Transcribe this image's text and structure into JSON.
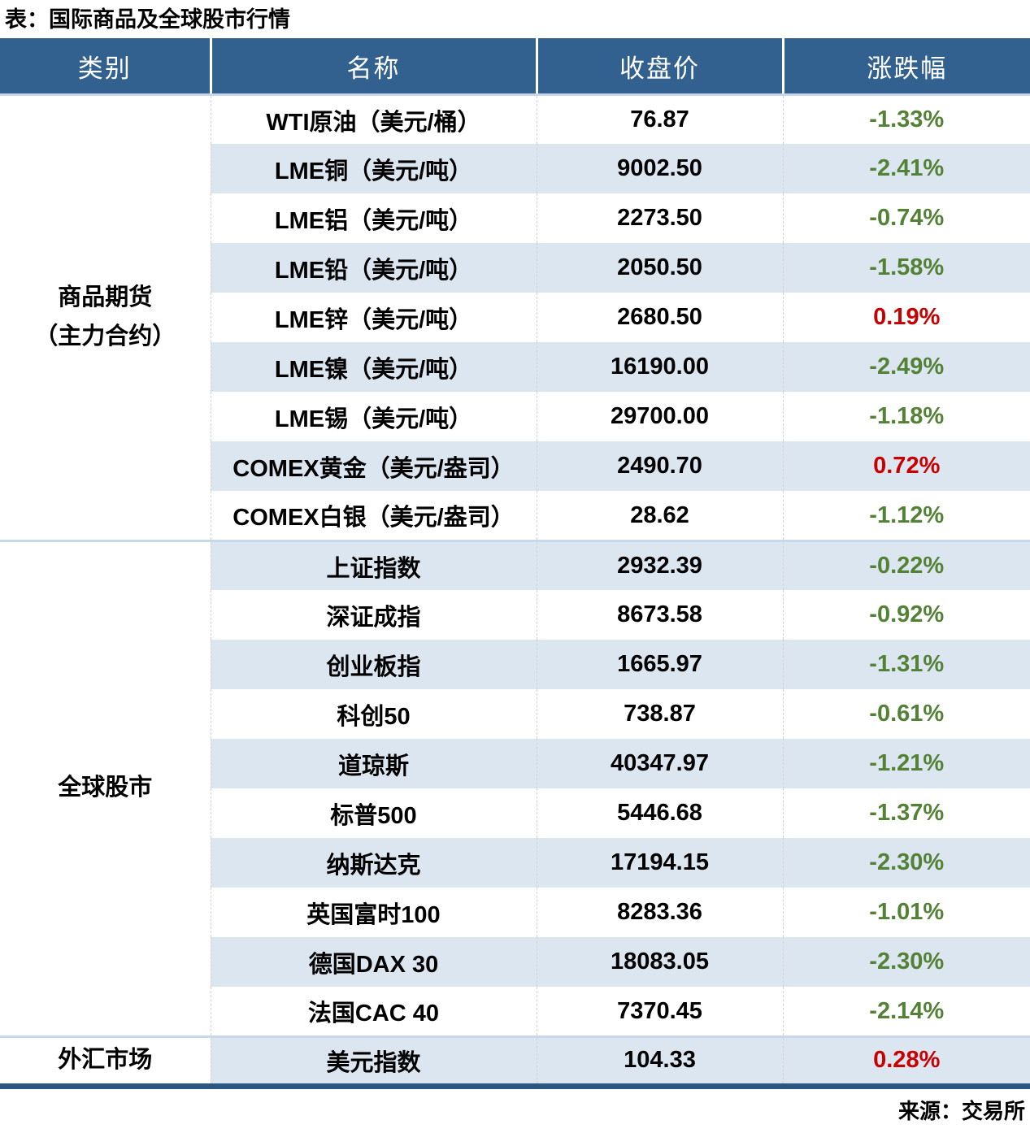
{
  "title": "表：国际商品及全球股市行情",
  "source": "来源：交易所",
  "colors": {
    "header_bg": "#33618F",
    "row_alt_bg": "#DCE6F1",
    "section_divider": "#C8D8EA",
    "bottom_bar": "#2C5784",
    "advance_red": "#C80000",
    "decline_green": "#538135",
    "text": "#000000"
  },
  "table": {
    "headers": {
      "category": "类别",
      "name": "名称",
      "close": "收盘价",
      "change": "涨跌幅"
    },
    "sections": [
      {
        "category": "商品期货\n（主力合约）",
        "rows": [
          {
            "name": "WTI原油（美元/桶）",
            "close": "76.87",
            "change": "-1.33%"
          },
          {
            "name": "LME铜（美元/吨）",
            "close": "9002.50",
            "change": "-2.41%"
          },
          {
            "name": "LME铝（美元/吨）",
            "close": "2273.50",
            "change": "-0.74%"
          },
          {
            "name": "LME铅（美元/吨）",
            "close": "2050.50",
            "change": "-1.58%"
          },
          {
            "name": "LME锌（美元/吨）",
            "close": "2680.50",
            "change": "0.19%"
          },
          {
            "name": "LME镍（美元/吨）",
            "close": "16190.00",
            "change": "-2.49%"
          },
          {
            "name": "LME锡（美元/吨）",
            "close": "29700.00",
            "change": "-1.18%"
          },
          {
            "name": "COMEX黄金（美元/盎司）",
            "close": "2490.70",
            "change": "0.72%"
          },
          {
            "name": "COMEX白银（美元/盎司）",
            "close": "28.62",
            "change": "-1.12%"
          }
        ]
      },
      {
        "category": "全球股市",
        "rows": [
          {
            "name": "上证指数",
            "close": "2932.39",
            "change": "-0.22%"
          },
          {
            "name": "深证成指",
            "close": "8673.58",
            "change": "-0.92%"
          },
          {
            "name": "创业板指",
            "close": "1665.97",
            "change": "-1.31%"
          },
          {
            "name": "科创50",
            "close": "738.87",
            "change": "-0.61%"
          },
          {
            "name": "道琼斯",
            "close": "40347.97",
            "change": "-1.21%"
          },
          {
            "name": "标普500",
            "close": "5446.68",
            "change": "-1.37%"
          },
          {
            "name": "纳斯达克",
            "close": "17194.15",
            "change": "-2.30%"
          },
          {
            "name": "英国富时100",
            "close": "8283.36",
            "change": "-1.01%"
          },
          {
            "name": "德国DAX 30",
            "close": "18083.05",
            "change": "-2.30%"
          },
          {
            "name": "法国CAC 40",
            "close": "7370.45",
            "change": "-2.14%"
          }
        ]
      },
      {
        "category": "外汇市场",
        "rows": [
          {
            "name": "美元指数",
            "close": "104.33",
            "change": "0.28%"
          }
        ]
      }
    ]
  }
}
